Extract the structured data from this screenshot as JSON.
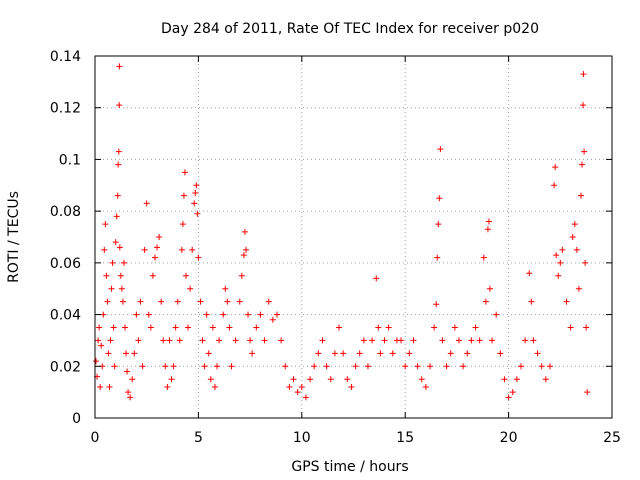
{
  "chart_data": {
    "type": "scatter",
    "title": "Day 284 of 2011, Rate Of TEC Index for receiver p020",
    "xlabel": "GPS time / hours",
    "ylabel": "ROTI / TECUs",
    "xlim": [
      0,
      25
    ],
    "ylim": [
      0,
      0.14
    ],
    "xticks": [
      0,
      5,
      10,
      15,
      20,
      25
    ],
    "yticks": [
      0,
      0.02,
      0.04,
      0.06,
      0.08,
      0.1,
      0.12,
      0.14
    ],
    "ytick_labels": [
      "0",
      "0.02",
      "0.04",
      "0.06",
      "0.08",
      "0.1",
      "0.12",
      "0.14"
    ],
    "grid": true,
    "legend": "none",
    "marker": "plus",
    "color": "#ff0000",
    "series": [
      {
        "points": [
          [
            0.05,
            0.022
          ],
          [
            0.1,
            0.016
          ],
          [
            0.15,
            0.03
          ],
          [
            0.2,
            0.035
          ],
          [
            0.25,
            0.012
          ],
          [
            0.3,
            0.028
          ],
          [
            0.35,
            0.02
          ],
          [
            0.4,
            0.04
          ],
          [
            0.45,
            0.065
          ],
          [
            0.5,
            0.075
          ],
          [
            0.55,
            0.055
          ],
          [
            0.6,
            0.045
          ],
          [
            0.65,
            0.025
          ],
          [
            0.7,
            0.012
          ],
          [
            0.75,
            0.03
          ],
          [
            0.8,
            0.05
          ],
          [
            0.85,
            0.06
          ],
          [
            0.9,
            0.035
          ],
          [
            0.95,
            0.02
          ],
          [
            1.0,
            0.068
          ],
          [
            1.05,
            0.078
          ],
          [
            1.1,
            0.086
          ],
          [
            1.12,
            0.098
          ],
          [
            1.15,
            0.103
          ],
          [
            1.17,
            0.121
          ],
          [
            1.18,
            0.136
          ],
          [
            1.2,
            0.066
          ],
          [
            1.25,
            0.055
          ],
          [
            1.3,
            0.05
          ],
          [
            1.35,
            0.045
          ],
          [
            1.4,
            0.06
          ],
          [
            1.45,
            0.035
          ],
          [
            1.5,
            0.025
          ],
          [
            1.55,
            0.018
          ],
          [
            1.6,
            0.01
          ],
          [
            1.7,
            0.008
          ],
          [
            1.8,
            0.015
          ],
          [
            1.9,
            0.025
          ],
          [
            2.0,
            0.04
          ],
          [
            2.1,
            0.03
          ],
          [
            2.2,
            0.045
          ],
          [
            2.3,
            0.02
          ],
          [
            2.4,
            0.065
          ],
          [
            2.5,
            0.083
          ],
          [
            2.6,
            0.04
          ],
          [
            2.7,
            0.035
          ],
          [
            2.8,
            0.055
          ],
          [
            2.9,
            0.062
          ],
          [
            3.0,
            0.066
          ],
          [
            3.1,
            0.07
          ],
          [
            3.2,
            0.045
          ],
          [
            3.3,
            0.03
          ],
          [
            3.4,
            0.02
          ],
          [
            3.5,
            0.012
          ],
          [
            3.6,
            0.03
          ],
          [
            3.7,
            0.015
          ],
          [
            3.8,
            0.02
          ],
          [
            3.9,
            0.035
          ],
          [
            4.0,
            0.045
          ],
          [
            4.1,
            0.03
          ],
          [
            4.2,
            0.065
          ],
          [
            4.25,
            0.075
          ],
          [
            4.3,
            0.086
          ],
          [
            4.35,
            0.095
          ],
          [
            4.4,
            0.055
          ],
          [
            4.5,
            0.035
          ],
          [
            4.6,
            0.05
          ],
          [
            4.7,
            0.065
          ],
          [
            4.8,
            0.083
          ],
          [
            4.85,
            0.087
          ],
          [
            4.9,
            0.09
          ],
          [
            4.95,
            0.079
          ],
          [
            5.0,
            0.062
          ],
          [
            5.1,
            0.045
          ],
          [
            5.2,
            0.03
          ],
          [
            5.3,
            0.02
          ],
          [
            5.4,
            0.04
          ],
          [
            5.5,
            0.025
          ],
          [
            5.6,
            0.015
          ],
          [
            5.7,
            0.035
          ],
          [
            5.8,
            0.012
          ],
          [
            5.9,
            0.02
          ],
          [
            6.0,
            0.03
          ],
          [
            6.2,
            0.04
          ],
          [
            6.3,
            0.05
          ],
          [
            6.4,
            0.045
          ],
          [
            6.5,
            0.035
          ],
          [
            6.6,
            0.02
          ],
          [
            6.8,
            0.03
          ],
          [
            7.0,
            0.045
          ],
          [
            7.1,
            0.055
          ],
          [
            7.2,
            0.063
          ],
          [
            7.25,
            0.072
          ],
          [
            7.3,
            0.065
          ],
          [
            7.4,
            0.04
          ],
          [
            7.5,
            0.03
          ],
          [
            7.6,
            0.025
          ],
          [
            7.8,
            0.035
          ],
          [
            8.0,
            0.04
          ],
          [
            8.2,
            0.03
          ],
          [
            8.4,
            0.045
          ],
          [
            8.6,
            0.038
          ],
          [
            8.8,
            0.04
          ],
          [
            9.0,
            0.03
          ],
          [
            9.2,
            0.02
          ],
          [
            9.4,
            0.012
          ],
          [
            9.6,
            0.015
          ],
          [
            9.8,
            0.01
          ],
          [
            10.0,
            0.012
          ],
          [
            10.2,
            0.008
          ],
          [
            10.4,
            0.015
          ],
          [
            10.6,
            0.02
          ],
          [
            10.8,
            0.025
          ],
          [
            11.0,
            0.03
          ],
          [
            11.2,
            0.02
          ],
          [
            11.4,
            0.015
          ],
          [
            11.6,
            0.025
          ],
          [
            11.8,
            0.035
          ],
          [
            12.0,
            0.025
          ],
          [
            12.2,
            0.015
          ],
          [
            12.4,
            0.012
          ],
          [
            12.6,
            0.02
          ],
          [
            12.8,
            0.025
          ],
          [
            13.0,
            0.03
          ],
          [
            13.2,
            0.02
          ],
          [
            13.4,
            0.03
          ],
          [
            13.6,
            0.054
          ],
          [
            13.7,
            0.035
          ],
          [
            13.8,
            0.025
          ],
          [
            14.0,
            0.03
          ],
          [
            14.2,
            0.035
          ],
          [
            14.4,
            0.025
          ],
          [
            14.6,
            0.03
          ],
          [
            14.8,
            0.03
          ],
          [
            15.0,
            0.02
          ],
          [
            15.2,
            0.025
          ],
          [
            15.4,
            0.03
          ],
          [
            15.6,
            0.02
          ],
          [
            15.8,
            0.015
          ],
          [
            16.0,
            0.012
          ],
          [
            16.2,
            0.02
          ],
          [
            16.4,
            0.035
          ],
          [
            16.5,
            0.044
          ],
          [
            16.55,
            0.062
          ],
          [
            16.6,
            0.075
          ],
          [
            16.65,
            0.085
          ],
          [
            16.7,
            0.104
          ],
          [
            16.8,
            0.03
          ],
          [
            17.0,
            0.02
          ],
          [
            17.2,
            0.025
          ],
          [
            17.4,
            0.035
          ],
          [
            17.6,
            0.03
          ],
          [
            17.8,
            0.02
          ],
          [
            18.0,
            0.025
          ],
          [
            18.2,
            0.03
          ],
          [
            18.4,
            0.035
          ],
          [
            18.6,
            0.03
          ],
          [
            18.8,
            0.062
          ],
          [
            18.9,
            0.045
          ],
          [
            19.0,
            0.073
          ],
          [
            19.05,
            0.076
          ],
          [
            19.1,
            0.05
          ],
          [
            19.2,
            0.03
          ],
          [
            19.4,
            0.04
          ],
          [
            19.6,
            0.025
          ],
          [
            19.8,
            0.015
          ],
          [
            20.0,
            0.008
          ],
          [
            20.2,
            0.01
          ],
          [
            20.4,
            0.015
          ],
          [
            20.6,
            0.02
          ],
          [
            20.8,
            0.03
          ],
          [
            21.0,
            0.056
          ],
          [
            21.1,
            0.045
          ],
          [
            21.2,
            0.03
          ],
          [
            21.4,
            0.025
          ],
          [
            21.6,
            0.02
          ],
          [
            21.8,
            0.015
          ],
          [
            22.0,
            0.02
          ],
          [
            22.2,
            0.09
          ],
          [
            22.25,
            0.097
          ],
          [
            22.3,
            0.063
          ],
          [
            22.4,
            0.055
          ],
          [
            22.5,
            0.06
          ],
          [
            22.6,
            0.065
          ],
          [
            22.8,
            0.045
          ],
          [
            23.0,
            0.035
          ],
          [
            23.1,
            0.07
          ],
          [
            23.2,
            0.075
          ],
          [
            23.3,
            0.065
          ],
          [
            23.4,
            0.05
          ],
          [
            23.5,
            0.086
          ],
          [
            23.55,
            0.098
          ],
          [
            23.6,
            0.121
          ],
          [
            23.62,
            0.133
          ],
          [
            23.65,
            0.103
          ],
          [
            23.7,
            0.06
          ],
          [
            23.75,
            0.035
          ],
          [
            23.8,
            0.01
          ]
        ]
      }
    ]
  }
}
